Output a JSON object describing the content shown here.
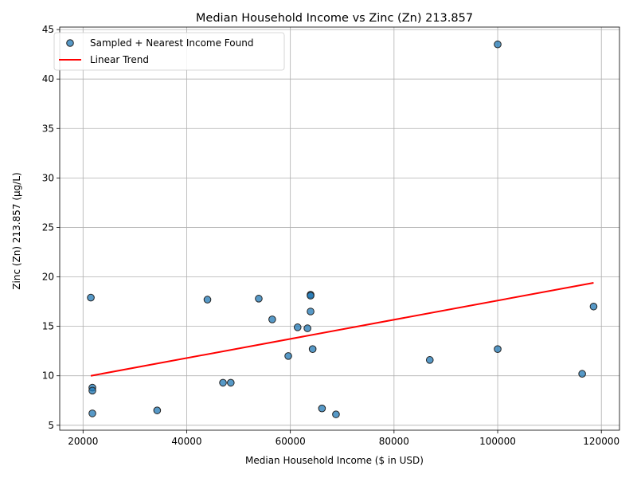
{
  "chart_data": {
    "type": "scatter",
    "title": "Median Household Income vs Zinc (Zn) 213.857",
    "xlabel": "Median Household Income ($ in USD)",
    "ylabel": "Zinc (Zn) 213.857 (µg/L)",
    "xlim": [
      15500,
      123500
    ],
    "ylim": [
      4.5,
      45.25
    ],
    "xticks": [
      20000,
      40000,
      60000,
      80000,
      100000,
      120000
    ],
    "yticks": [
      5,
      10,
      15,
      20,
      25,
      30,
      35,
      40,
      45
    ],
    "grid": true,
    "legend_position": "top-left",
    "series": [
      {
        "name": "Sampled + Nearest Income Found",
        "kind": "points",
        "color": "#1f77b4",
        "points": [
          {
            "x": 21500,
            "y": 17.9
          },
          {
            "x": 21800,
            "y": 8.8
          },
          {
            "x": 21800,
            "y": 8.5
          },
          {
            "x": 21800,
            "y": 6.2
          },
          {
            "x": 34300,
            "y": 6.5
          },
          {
            "x": 44000,
            "y": 17.7
          },
          {
            "x": 47000,
            "y": 9.3
          },
          {
            "x": 48500,
            "y": 9.3
          },
          {
            "x": 53900,
            "y": 17.8
          },
          {
            "x": 56500,
            "y": 15.7
          },
          {
            "x": 59600,
            "y": 12.0
          },
          {
            "x": 61400,
            "y": 14.9
          },
          {
            "x": 63300,
            "y": 14.8
          },
          {
            "x": 63900,
            "y": 18.2
          },
          {
            "x": 63900,
            "y": 18.1
          },
          {
            "x": 63900,
            "y": 16.5
          },
          {
            "x": 64300,
            "y": 12.7
          },
          {
            "x": 66100,
            "y": 6.7
          },
          {
            "x": 68800,
            "y": 6.1
          },
          {
            "x": 86900,
            "y": 11.6
          },
          {
            "x": 100000,
            "y": 43.5
          },
          {
            "x": 100000,
            "y": 12.7
          },
          {
            "x": 116300,
            "y": 10.2
          },
          {
            "x": 118500,
            "y": 17.0
          }
        ]
      },
      {
        "name": "Linear Trend",
        "kind": "line",
        "color": "#ff0000",
        "x": [
          21500,
          118500
        ],
        "y": [
          10.0,
          19.4
        ]
      }
    ]
  }
}
